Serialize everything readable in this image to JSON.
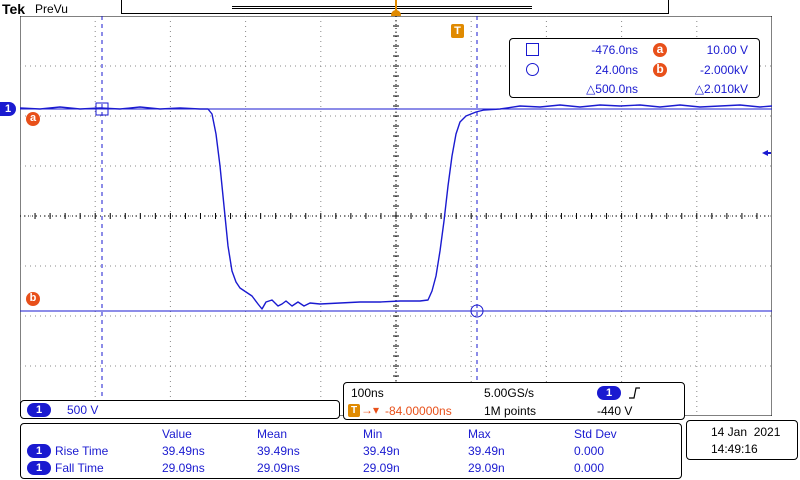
{
  "header": {
    "brand": "Tek",
    "mode": "PreVu"
  },
  "colors": {
    "trace": "#1a1ad0",
    "cursor_label": "#e8501a",
    "trigger": "#e08a00",
    "grid": "#000000"
  },
  "channel_marker": "1",
  "trigger_marker": "T",
  "cursor_a_label": "a",
  "cursor_b_label": "b",
  "cursor_readout": {
    "cursor1_time": "-476.0ns",
    "cursor2_time": "24.00ns",
    "delta_time": "△500.0ns",
    "a_value": "10.00 V",
    "b_value": "-2.000kV",
    "delta_value": "△2.010kV"
  },
  "channel_scale": {
    "channel": "1",
    "value": "500 V"
  },
  "acquisition": {
    "time_div": "100ns",
    "sample_rate": "5.00GS/s",
    "trigger_channel": "1",
    "trigger_slope_icon": "rising-edge-icon",
    "trigger_position": "-84.00000ns",
    "record_length": "1M points",
    "trigger_level": "-440 V"
  },
  "measurements": {
    "headers": [
      "Value",
      "Mean",
      "Min",
      "Max",
      "Std Dev"
    ],
    "rows": [
      {
        "channel": "1",
        "name": "Rise Time",
        "value": "39.49ns",
        "mean": "39.49ns",
        "min": "39.49n",
        "max": "39.49n",
        "std": "0.000"
      },
      {
        "channel": "1",
        "name": "Fall Time",
        "value": "29.09ns",
        "mean": "29.09ns",
        "min": "29.09n",
        "max": "29.09n",
        "std": "0.000"
      }
    ]
  },
  "datetime": {
    "date": "14 Jan  2021",
    "time": "14:49:16"
  }
}
